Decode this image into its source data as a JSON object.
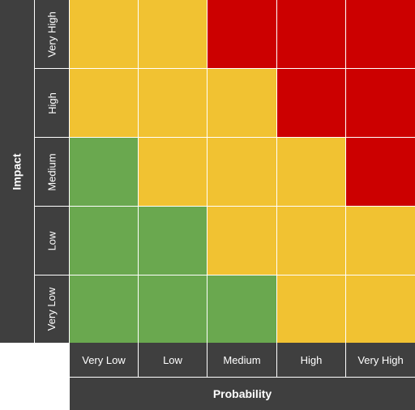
{
  "y_axis": {
    "title": "Impact",
    "labels": [
      "Very High",
      "High",
      "Medium",
      "Low",
      "Very Low"
    ]
  },
  "x_axis": {
    "title": "Probability",
    "labels": [
      "Very Low",
      "Low",
      "Medium",
      "High",
      "Very High"
    ]
  },
  "colors": {
    "green": "#6aa84f",
    "yellow": "#f1c232",
    "red": "#cc0000",
    "axis_bg": "#3f3f3f"
  },
  "matrix": [
    [
      "yellow",
      "yellow",
      "red",
      "red",
      "red"
    ],
    [
      "yellow",
      "yellow",
      "yellow",
      "red",
      "red"
    ],
    [
      "green",
      "yellow",
      "yellow",
      "yellow",
      "red"
    ],
    [
      "green",
      "green",
      "yellow",
      "yellow",
      "yellow"
    ],
    [
      "green",
      "green",
      "green",
      "yellow",
      "yellow"
    ]
  ]
}
